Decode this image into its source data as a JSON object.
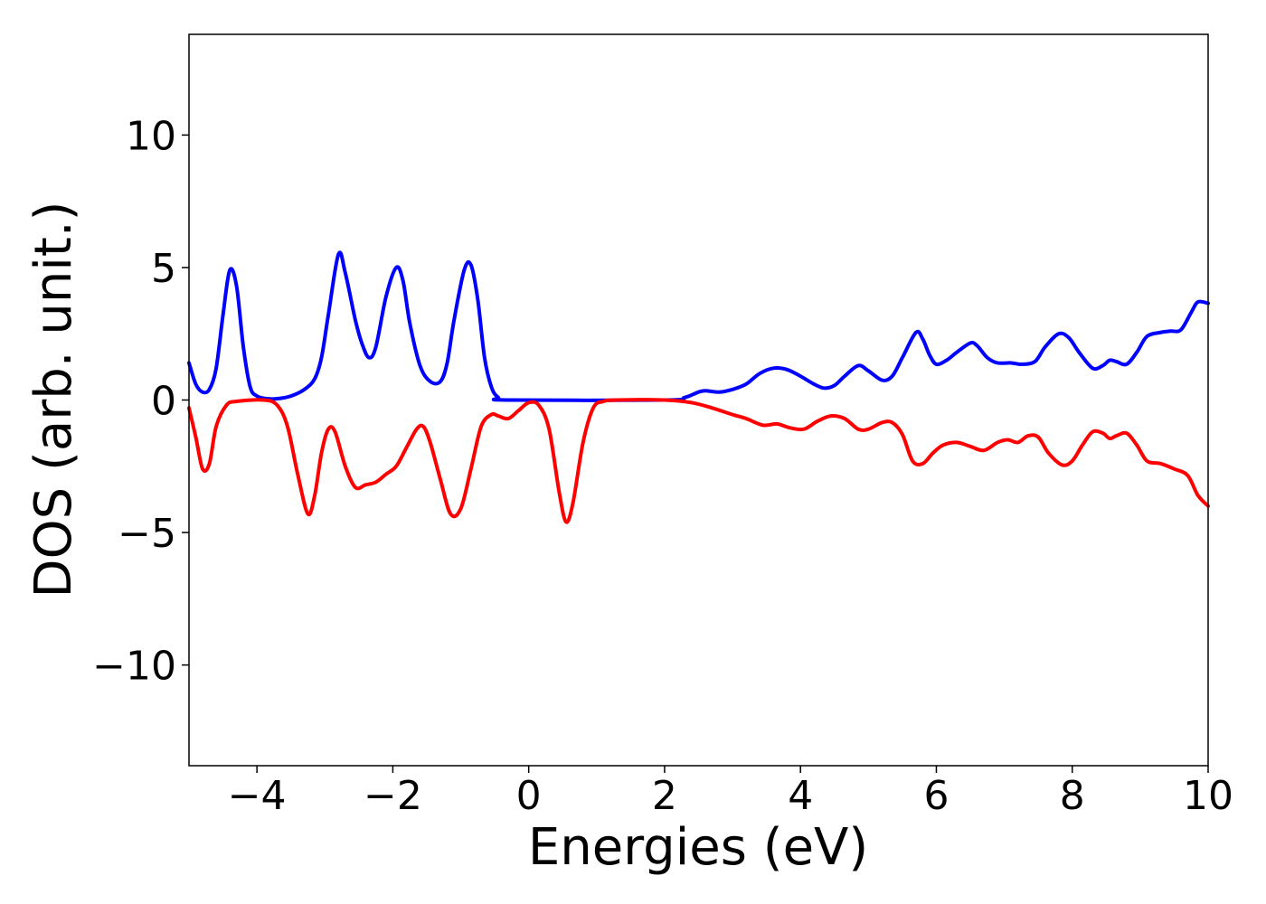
{
  "chart_data": {
    "type": "line",
    "title": "",
    "xlabel": "Energies (eV)",
    "ylabel": "DOS (arb. unit.)",
    "xlim": [
      -5,
      10
    ],
    "ylim": [
      -13.8,
      13.8
    ],
    "x_ticks": [
      -4,
      -2,
      0,
      2,
      4,
      6,
      8,
      10
    ],
    "x_tick_labels": [
      "−4",
      "−2",
      "0",
      "2",
      "4",
      "6",
      "8",
      "10"
    ],
    "y_ticks": [
      -10,
      -5,
      0,
      5,
      10
    ],
    "y_tick_labels": [
      "−10",
      "−5",
      "0",
      "5",
      "10"
    ],
    "grid": false,
    "legend": "none",
    "series": [
      {
        "color": "#0000ff",
        "points": [
          [
            -5.0,
            1.4
          ],
          [
            -4.9,
            0.6
          ],
          [
            -4.8,
            0.3
          ],
          [
            -4.7,
            0.4
          ],
          [
            -4.6,
            1.2
          ],
          [
            -4.5,
            3.2
          ],
          [
            -4.4,
            4.9
          ],
          [
            -4.3,
            4.3
          ],
          [
            -4.2,
            2.0
          ],
          [
            -4.1,
            0.5
          ],
          [
            -4.0,
            0.15
          ],
          [
            -3.85,
            0.05
          ],
          [
            -3.7,
            0.05
          ],
          [
            -3.5,
            0.15
          ],
          [
            -3.3,
            0.4
          ],
          [
            -3.15,
            0.8
          ],
          [
            -3.05,
            1.6
          ],
          [
            -2.95,
            3.2
          ],
          [
            -2.8,
            5.5
          ],
          [
            -2.7,
            4.8
          ],
          [
            -2.55,
            3.0
          ],
          [
            -2.45,
            2.1
          ],
          [
            -2.35,
            1.6
          ],
          [
            -2.25,
            2.0
          ],
          [
            -2.1,
            3.9
          ],
          [
            -1.95,
            5.0
          ],
          [
            -1.85,
            4.5
          ],
          [
            -1.75,
            2.9
          ],
          [
            -1.6,
            1.3
          ],
          [
            -1.45,
            0.7
          ],
          [
            -1.3,
            0.7
          ],
          [
            -1.2,
            1.4
          ],
          [
            -1.1,
            3.0
          ],
          [
            -0.95,
            4.9
          ],
          [
            -0.85,
            5.1
          ],
          [
            -0.75,
            3.8
          ],
          [
            -0.65,
            1.6
          ],
          [
            -0.55,
            0.5
          ],
          [
            -0.45,
            0.1
          ],
          [
            -0.3,
            0.0
          ],
          [
            2.0,
            0.0
          ],
          [
            2.3,
            0.1
          ],
          [
            2.5,
            0.3
          ],
          [
            2.6,
            0.35
          ],
          [
            2.8,
            0.3
          ],
          [
            3.0,
            0.4
          ],
          [
            3.2,
            0.6
          ],
          [
            3.4,
            1.0
          ],
          [
            3.6,
            1.2
          ],
          [
            3.8,
            1.15
          ],
          [
            4.0,
            0.9
          ],
          [
            4.2,
            0.6
          ],
          [
            4.35,
            0.45
          ],
          [
            4.5,
            0.55
          ],
          [
            4.65,
            0.9
          ],
          [
            4.85,
            1.3
          ],
          [
            5.0,
            1.1
          ],
          [
            5.2,
            0.75
          ],
          [
            5.35,
            0.9
          ],
          [
            5.5,
            1.6
          ],
          [
            5.7,
            2.55
          ],
          [
            5.8,
            2.3
          ],
          [
            5.9,
            1.7
          ],
          [
            6.0,
            1.35
          ],
          [
            6.15,
            1.5
          ],
          [
            6.3,
            1.8
          ],
          [
            6.5,
            2.15
          ],
          [
            6.6,
            2.05
          ],
          [
            6.75,
            1.6
          ],
          [
            6.9,
            1.4
          ],
          [
            7.1,
            1.4
          ],
          [
            7.25,
            1.35
          ],
          [
            7.45,
            1.45
          ],
          [
            7.6,
            2.0
          ],
          [
            7.8,
            2.5
          ],
          [
            7.95,
            2.35
          ],
          [
            8.1,
            1.8
          ],
          [
            8.3,
            1.2
          ],
          [
            8.45,
            1.3
          ],
          [
            8.55,
            1.5
          ],
          [
            8.65,
            1.45
          ],
          [
            8.8,
            1.35
          ],
          [
            8.95,
            1.8
          ],
          [
            9.1,
            2.4
          ],
          [
            9.3,
            2.55
          ],
          [
            9.45,
            2.6
          ],
          [
            9.6,
            2.65
          ],
          [
            9.75,
            3.3
          ],
          [
            9.85,
            3.7
          ],
          [
            10.0,
            3.65
          ]
        ]
      },
      {
        "color": "#ff0000",
        "points": [
          [
            -5.0,
            -0.3
          ],
          [
            -4.9,
            -1.4
          ],
          [
            -4.8,
            -2.6
          ],
          [
            -4.7,
            -2.4
          ],
          [
            -4.6,
            -1.0
          ],
          [
            -4.45,
            -0.2
          ],
          [
            -4.3,
            -0.05
          ],
          [
            -3.9,
            0.0
          ],
          [
            -3.7,
            -0.2
          ],
          [
            -3.55,
            -1.0
          ],
          [
            -3.4,
            -2.8
          ],
          [
            -3.25,
            -4.3
          ],
          [
            -3.15,
            -3.6
          ],
          [
            -3.05,
            -2.0
          ],
          [
            -2.95,
            -1.1
          ],
          [
            -2.85,
            -1.2
          ],
          [
            -2.7,
            -2.5
          ],
          [
            -2.55,
            -3.3
          ],
          [
            -2.4,
            -3.2
          ],
          [
            -2.25,
            -3.1
          ],
          [
            -2.1,
            -2.8
          ],
          [
            -1.95,
            -2.5
          ],
          [
            -1.8,
            -1.8
          ],
          [
            -1.65,
            -1.1
          ],
          [
            -1.55,
            -1.0
          ],
          [
            -1.45,
            -1.6
          ],
          [
            -1.3,
            -3.0
          ],
          [
            -1.15,
            -4.3
          ],
          [
            -1.0,
            -4.1
          ],
          [
            -0.85,
            -2.6
          ],
          [
            -0.7,
            -1.0
          ],
          [
            -0.55,
            -0.55
          ],
          [
            -0.45,
            -0.6
          ],
          [
            -0.3,
            -0.7
          ],
          [
            -0.15,
            -0.4
          ],
          [
            0.0,
            -0.1
          ],
          [
            0.15,
            -0.2
          ],
          [
            0.3,
            -1.1
          ],
          [
            0.45,
            -3.5
          ],
          [
            0.55,
            -4.6
          ],
          [
            0.65,
            -3.9
          ],
          [
            0.8,
            -1.6
          ],
          [
            0.95,
            -0.3
          ],
          [
            1.1,
            -0.05
          ],
          [
            1.3,
            0.0
          ],
          [
            2.0,
            0.0
          ],
          [
            2.4,
            -0.1
          ],
          [
            2.7,
            -0.3
          ],
          [
            3.0,
            -0.55
          ],
          [
            3.2,
            -0.7
          ],
          [
            3.45,
            -0.95
          ],
          [
            3.65,
            -0.9
          ],
          [
            3.85,
            -1.05
          ],
          [
            4.05,
            -1.1
          ],
          [
            4.25,
            -0.8
          ],
          [
            4.45,
            -0.6
          ],
          [
            4.65,
            -0.7
          ],
          [
            4.85,
            -1.1
          ],
          [
            5.0,
            -1.1
          ],
          [
            5.2,
            -0.85
          ],
          [
            5.35,
            -0.85
          ],
          [
            5.5,
            -1.3
          ],
          [
            5.65,
            -2.3
          ],
          [
            5.8,
            -2.4
          ],
          [
            5.95,
            -2.0
          ],
          [
            6.1,
            -1.7
          ],
          [
            6.3,
            -1.6
          ],
          [
            6.5,
            -1.75
          ],
          [
            6.7,
            -1.9
          ],
          [
            6.9,
            -1.6
          ],
          [
            7.05,
            -1.5
          ],
          [
            7.2,
            -1.6
          ],
          [
            7.35,
            -1.35
          ],
          [
            7.5,
            -1.4
          ],
          [
            7.65,
            -2.0
          ],
          [
            7.85,
            -2.45
          ],
          [
            8.0,
            -2.3
          ],
          [
            8.15,
            -1.7
          ],
          [
            8.3,
            -1.2
          ],
          [
            8.45,
            -1.25
          ],
          [
            8.55,
            -1.45
          ],
          [
            8.65,
            -1.35
          ],
          [
            8.8,
            -1.25
          ],
          [
            8.95,
            -1.7
          ],
          [
            9.1,
            -2.3
          ],
          [
            9.3,
            -2.4
          ],
          [
            9.5,
            -2.6
          ],
          [
            9.7,
            -2.85
          ],
          [
            9.85,
            -3.6
          ],
          [
            10.0,
            -4.0
          ]
        ]
      }
    ]
  }
}
